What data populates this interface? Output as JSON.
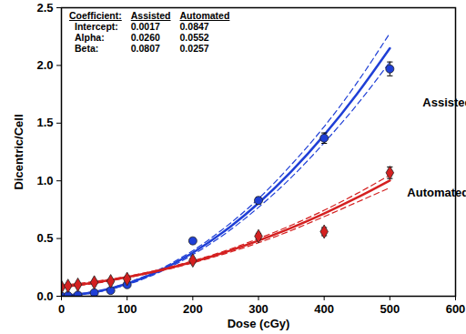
{
  "chart_data": {
    "type": "scatter",
    "x_label": "Dose (cGy)",
    "y_label": "Dicentric/Cell",
    "xlim": [
      0,
      600
    ],
    "xticks": [
      0,
      100,
      200,
      300,
      400,
      500,
      600
    ],
    "ylim": [
      0,
      2.5
    ],
    "yticks": [
      {
        "value": 0,
        "label": "0.0"
      },
      0.5,
      {
        "value": 1,
        "label": "1.0"
      },
      1.5,
      {
        "value": 2,
        "label": "2.0"
      },
      2.5
    ],
    "grid": false,
    "coefficients": {
      "header": [
        "Coefficient:",
        "Assisted",
        "Automated"
      ],
      "rows": [
        [
          "Intercept:",
          "0.0017",
          "0.0847"
        ],
        [
          "Alpha:",
          "0.0260",
          "0.0552"
        ],
        [
          "Beta:",
          "0.0807",
          "0.0257"
        ]
      ]
    },
    "series": [
      {
        "name": "Assisted",
        "color": "#1f3fd6",
        "marker": "circle",
        "x": [
          0,
          10,
          25,
          50,
          75,
          100,
          200,
          300,
          400,
          500
        ],
        "values": [
          0.0,
          0.005,
          0.01,
          0.03,
          0.05,
          0.1,
          0.48,
          0.83,
          1.37,
          1.97
        ],
        "errors": [
          0.005,
          0.005,
          0.006,
          0.008,
          0.01,
          0.012,
          0.025,
          0.03,
          0.045,
          0.06
        ],
        "fit": {
          "x": [
            0,
            50,
            100,
            150,
            200,
            250,
            300,
            350,
            400,
            450,
            500
          ],
          "values": [
            0.0017,
            0.035,
            0.108,
            0.222,
            0.377,
            0.571,
            0.806,
            1.081,
            1.397,
            1.753,
            2.149
          ],
          "upper": [
            0.01,
            0.04,
            0.115,
            0.235,
            0.395,
            0.6,
            0.845,
            1.14,
            1.47,
            1.85,
            2.28
          ],
          "lower": [
            0.0,
            0.03,
            0.1,
            0.21,
            0.36,
            0.545,
            0.77,
            1.03,
            1.33,
            1.66,
            2.03
          ]
        }
      },
      {
        "name": "Automated",
        "color": "#d42020",
        "marker": "diamond",
        "x": [
          0,
          10,
          25,
          50,
          75,
          100,
          200,
          300,
          400,
          500
        ],
        "values": [
          0.08,
          0.09,
          0.1,
          0.12,
          0.13,
          0.15,
          0.31,
          0.52,
          0.56,
          1.07
        ],
        "errors": [
          0.008,
          0.008,
          0.009,
          0.01,
          0.01,
          0.012,
          0.02,
          0.025,
          0.035,
          0.05
        ],
        "fit": {
          "x": [
            0,
            50,
            100,
            150,
            200,
            250,
            300,
            350,
            400,
            450,
            500
          ],
          "values": [
            0.0847,
            0.119,
            0.166,
            0.225,
            0.298,
            0.383,
            0.482,
            0.593,
            0.717,
            0.854,
            1.003
          ],
          "upper": [
            0.095,
            0.128,
            0.172,
            0.232,
            0.307,
            0.395,
            0.5,
            0.615,
            0.745,
            0.89,
            1.05
          ],
          "lower": [
            0.075,
            0.11,
            0.16,
            0.218,
            0.289,
            0.37,
            0.463,
            0.57,
            0.69,
            0.815,
            0.94
          ]
        }
      }
    ]
  }
}
